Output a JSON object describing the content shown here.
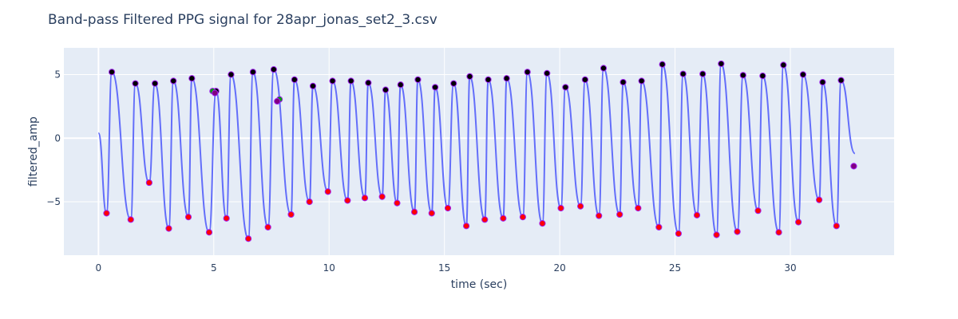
{
  "chart_data": {
    "type": "line",
    "title": "Band-pass Filtered PPG signal for 28apr_jonas_set2_3.csv",
    "xlabel": "time (sec)",
    "ylabel": "filtered_amp",
    "xlim": [
      -1.5,
      34.5
    ],
    "ylim": [
      -9.2,
      7.1
    ],
    "x_ticks": [
      0,
      5,
      10,
      15,
      20,
      25,
      30
    ],
    "y_ticks": [
      -5,
      0,
      5
    ],
    "grid": true,
    "legend": "none",
    "colors": {
      "line": "#636efa",
      "peak": "#000000",
      "trough": "#ff0000",
      "marker_outline": "#a020f0",
      "green": "#00a000",
      "purple": "#800080",
      "plot_bg": "#e5ecf6",
      "grid": "#ffffff"
    },
    "peaks": [
      [
        0.58,
        5.2
      ],
      [
        1.6,
        4.3
      ],
      [
        2.45,
        4.3
      ],
      [
        3.25,
        4.5
      ],
      [
        4.05,
        4.7
      ],
      [
        5.1,
        3.7
      ],
      [
        5.75,
        5.0
      ],
      [
        6.7,
        5.2
      ],
      [
        7.6,
        5.4
      ],
      [
        8.5,
        4.6
      ],
      [
        9.3,
        4.1
      ],
      [
        10.15,
        4.5
      ],
      [
        10.95,
        4.5
      ],
      [
        11.7,
        4.35
      ],
      [
        12.45,
        3.8
      ],
      [
        13.1,
        4.2
      ],
      [
        13.85,
        4.6
      ],
      [
        14.6,
        4.0
      ],
      [
        15.4,
        4.3
      ],
      [
        16.1,
        4.85
      ],
      [
        16.9,
        4.6
      ],
      [
        17.7,
        4.7
      ],
      [
        18.6,
        5.2
      ],
      [
        19.45,
        5.1
      ],
      [
        20.25,
        4.0
      ],
      [
        21.1,
        4.6
      ],
      [
        21.9,
        5.5
      ],
      [
        22.75,
        4.4
      ],
      [
        23.55,
        4.5
      ],
      [
        24.45,
        5.8
      ],
      [
        25.35,
        5.05
      ],
      [
        26.2,
        5.05
      ],
      [
        27.0,
        5.85
      ],
      [
        27.95,
        4.95
      ],
      [
        28.8,
        4.9
      ],
      [
        29.7,
        5.75
      ],
      [
        30.55,
        5.0
      ],
      [
        31.4,
        4.4
      ],
      [
        32.2,
        4.55
      ]
    ],
    "troughs": [
      [
        0.35,
        -5.9
      ],
      [
        1.4,
        -6.4
      ],
      [
        2.2,
        -3.5
      ],
      [
        3.05,
        -7.1
      ],
      [
        3.9,
        -6.2
      ],
      [
        4.8,
        -7.4
      ],
      [
        5.55,
        -6.3
      ],
      [
        6.5,
        -7.9
      ],
      [
        7.35,
        -7.0
      ],
      [
        8.35,
        -6.0
      ],
      [
        9.15,
        -5.0
      ],
      [
        9.95,
        -4.2
      ],
      [
        10.8,
        -4.9
      ],
      [
        11.55,
        -4.7
      ],
      [
        12.3,
        -4.6
      ],
      [
        12.95,
        -5.1
      ],
      [
        13.7,
        -5.8
      ],
      [
        14.45,
        -5.9
      ],
      [
        15.15,
        -5.5
      ],
      [
        15.95,
        -6.9
      ],
      [
        16.75,
        -6.4
      ],
      [
        17.55,
        -6.3
      ],
      [
        18.4,
        -6.2
      ],
      [
        19.25,
        -6.7
      ],
      [
        20.05,
        -5.5
      ],
      [
        20.9,
        -5.35
      ],
      [
        21.7,
        -6.1
      ],
      [
        22.6,
        -6.0
      ],
      [
        23.4,
        -5.5
      ],
      [
        24.3,
        -7.0
      ],
      [
        25.15,
        -7.5
      ],
      [
        25.95,
        -6.05
      ],
      [
        26.8,
        -7.6
      ],
      [
        27.7,
        -7.35
      ],
      [
        28.6,
        -5.7
      ],
      [
        29.5,
        -7.4
      ],
      [
        30.35,
        -6.6
      ],
      [
        31.25,
        -4.85
      ],
      [
        32.0,
        -6.9
      ]
    ],
    "green_markers": [
      [
        4.95,
        3.7
      ],
      [
        7.85,
        3.05
      ]
    ],
    "purple_markers": [
      [
        5.05,
        3.55
      ],
      [
        7.75,
        2.9
      ],
      [
        32.75,
        -2.2
      ]
    ],
    "signal_start": [
      0.0,
      0.4
    ],
    "signal_end": [
      32.8,
      -1.2
    ]
  }
}
